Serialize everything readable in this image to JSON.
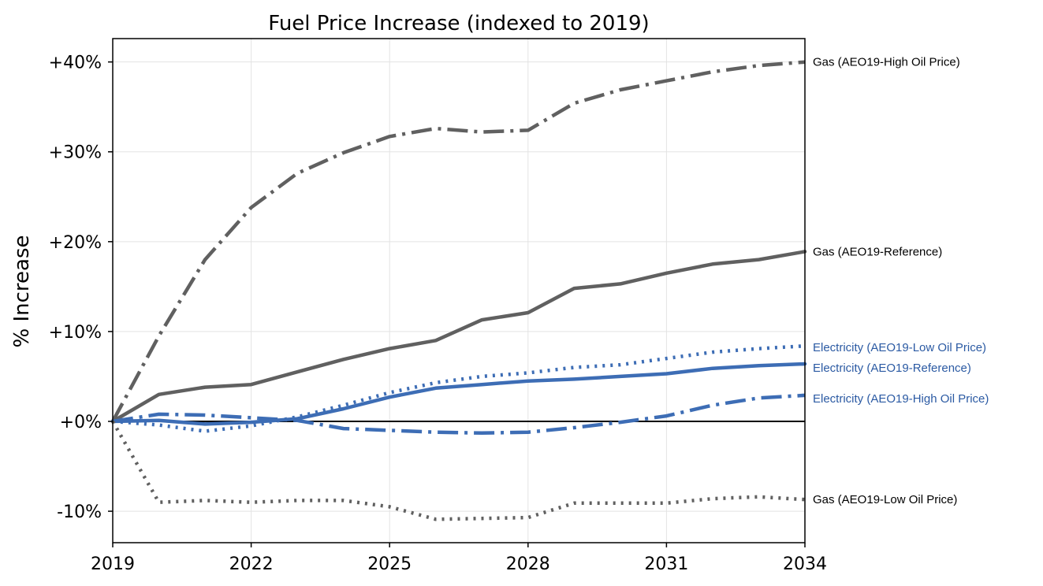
{
  "chart_data": {
    "type": "line",
    "title": "Fuel Price Increase (indexed to 2019)",
    "xlabel": "",
    "ylabel": "% Increase",
    "xlim": [
      2019,
      2034
    ],
    "ylim": [
      -13.5,
      42.6
    ],
    "x_ticks": [
      2019,
      2022,
      2025,
      2028,
      2031,
      2034
    ],
    "x_tick_labels": [
      "2019",
      "2022",
      "2025",
      "2028",
      "2031",
      "2034"
    ],
    "y_ticks": [
      -10,
      0,
      10,
      20,
      30,
      40
    ],
    "y_tick_labels": [
      "-10%",
      "+0%",
      "+10%",
      "+20%",
      "+30%",
      "+40%"
    ],
    "grid": true,
    "baseline": 0,
    "x": [
      2019,
      2020,
      2021,
      2022,
      2023,
      2024,
      2025,
      2026,
      2027,
      2028,
      2029,
      2030,
      2031,
      2032,
      2033,
      2034
    ],
    "series": [
      {
        "name": "Gas (AEO19-High Oil Price)",
        "label": "Gas (AEO19-High Oil Price)",
        "color": "#606060",
        "style": "dashdot",
        "values": [
          0,
          9.5,
          18,
          23.8,
          27.6,
          29.9,
          31.7,
          32.6,
          32.2,
          32.4,
          35.4,
          36.9,
          37.9,
          38.9,
          39.6,
          40.0
        ]
      },
      {
        "name": "Gas (AEO19-Reference)",
        "label": "Gas (AEO19-Reference)",
        "color": "#606060",
        "style": "solid",
        "values": [
          0,
          3.0,
          3.8,
          4.1,
          5.5,
          6.9,
          8.1,
          9.0,
          11.3,
          12.1,
          14.8,
          15.3,
          16.5,
          17.5,
          18.0,
          18.9
        ]
      },
      {
        "name": "Electricity (AEO19-Low Oil Price)",
        "label": "Electricity (AEO19-Low Oil Price)",
        "color": "#3d6db5",
        "style": "dotted",
        "values": [
          0,
          -0.4,
          -1.1,
          -0.5,
          0.5,
          1.8,
          3.2,
          4.3,
          5.0,
          5.4,
          6.0,
          6.3,
          7.0,
          7.7,
          8.1,
          8.4
        ]
      },
      {
        "name": "Electricity (AEO19-Reference)",
        "label": "Electricity (AEO19-Reference)",
        "color": "#3d6db5",
        "style": "solid",
        "values": [
          0,
          0.1,
          -0.3,
          -0.1,
          0.3,
          1.4,
          2.7,
          3.7,
          4.1,
          4.5,
          4.7,
          5.0,
          5.3,
          5.9,
          6.2,
          6.4
        ]
      },
      {
        "name": "Electricity (AEO19-High Oil Price)",
        "label": "Electricity (AEO19-High Oil Price)",
        "color": "#3d6db5",
        "style": "dashdot",
        "values": [
          0,
          0.8,
          0.7,
          0.4,
          0.1,
          -0.8,
          -1.0,
          -1.2,
          -1.3,
          -1.2,
          -0.7,
          -0.1,
          0.6,
          1.8,
          2.6,
          2.9
        ]
      },
      {
        "name": "Gas (AEO19-Low Oil Price)",
        "label": "Gas (AEO19-Low Oil Price)",
        "color": "#606060",
        "style": "dotted",
        "values": [
          0,
          -9.0,
          -8.8,
          -9.0,
          -8.8,
          -8.8,
          -9.5,
          -10.9,
          -10.8,
          -10.7,
          -9.1,
          -9.1,
          -9.1,
          -8.6,
          -8.4,
          -8.7
        ]
      }
    ]
  }
}
